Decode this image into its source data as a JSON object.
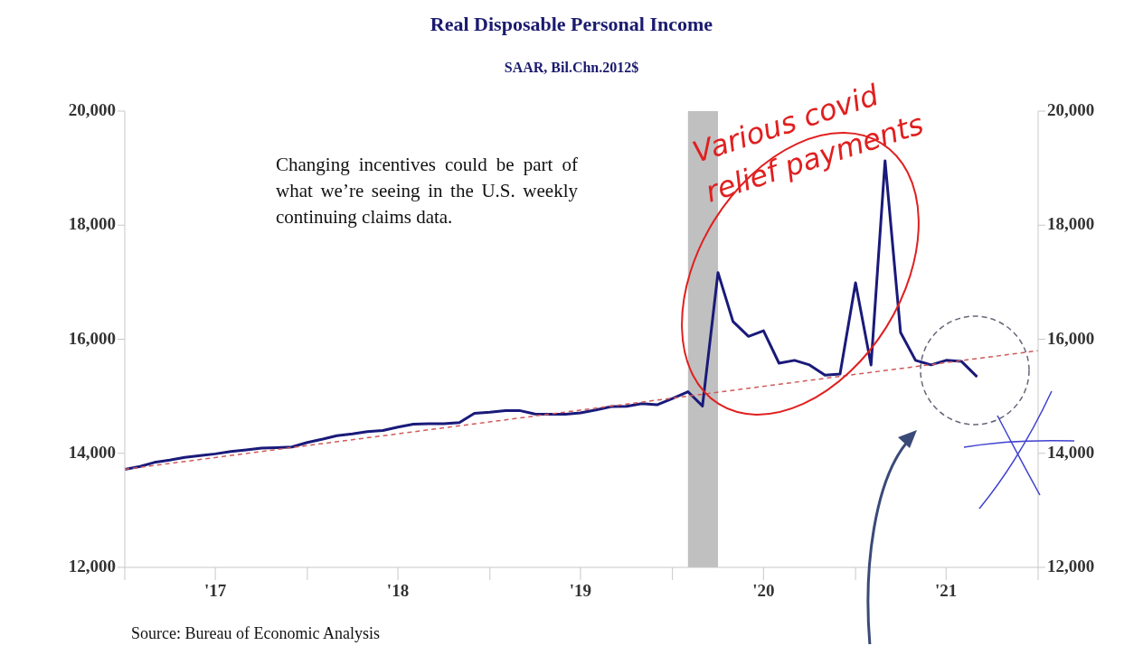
{
  "chart_data": {
    "type": "line",
    "title": "Real Disposable Personal Income",
    "subtitle": "SAAR, Bil.Chn.2012$",
    "annotations": [
      "Changing incentives could be part of what we’re seeing in the U.S. weekly continuing claims data.",
      "Various covid relief payments",
      "Source:  Bureau of Economic Analysis"
    ],
    "xlim": [
      "2017-01",
      "2022-01"
    ],
    "xticks": [
      {
        "value": "2017-01",
        "label": null
      },
      {
        "value": "2017-07",
        "label": "'17"
      },
      {
        "value": "2018-01",
        "label": null
      },
      {
        "value": "2018-07",
        "label": "'18"
      },
      {
        "value": "2019-01",
        "label": null
      },
      {
        "value": "2019-07",
        "label": "'19"
      },
      {
        "value": "2020-01",
        "label": null
      },
      {
        "value": "2020-07",
        "label": "'20"
      },
      {
        "value": "2021-01",
        "label": null
      },
      {
        "value": "2021-07",
        "label": "'21"
      },
      {
        "value": "2022-01",
        "label": null
      }
    ],
    "ylim": [
      12000,
      20000
    ],
    "yticks": [
      {
        "value": 12000,
        "label": "12,000"
      },
      {
        "value": 14000,
        "label": "14,000"
      },
      {
        "value": 16000,
        "label": "16,000"
      },
      {
        "value": 18000,
        "label": "18,000"
      },
      {
        "value": 20000,
        "label": "20,000"
      }
    ],
    "y2lim": [
      12000,
      20000
    ],
    "y2ticks": [
      {
        "value": 12000,
        "label": "12,000"
      },
      {
        "value": 14000,
        "label": "14,000"
      },
      {
        "value": 16000,
        "label": "16,000"
      },
      {
        "value": 18000,
        "label": "18,000"
      },
      {
        "value": 20000,
        "label": "20,000"
      }
    ],
    "marker": "none",
    "bands": [
      {
        "axis": "x",
        "from": "2020-02",
        "to": "2020-04",
        "color": "#c0c0c0"
      }
    ],
    "series": [
      {
        "color": "#1a1a7a",
        "line_style": "solid",
        "x": [
          "2017-01",
          "2017-02",
          "2017-03",
          "2017-04",
          "2017-05",
          "2017-06",
          "2017-07",
          "2017-08",
          "2017-09",
          "2017-10",
          "2017-11",
          "2017-12",
          "2018-01",
          "2018-02",
          "2018-03",
          "2018-04",
          "2018-05",
          "2018-06",
          "2018-07",
          "2018-08",
          "2018-09",
          "2018-10",
          "2018-11",
          "2018-12",
          "2019-01",
          "2019-02",
          "2019-03",
          "2019-04",
          "2019-05",
          "2019-06",
          "2019-07",
          "2019-08",
          "2019-09",
          "2019-10",
          "2019-11",
          "2019-12",
          "2020-01",
          "2020-02",
          "2020-03",
          "2020-04",
          "2020-05",
          "2020-06",
          "2020-07",
          "2020-08",
          "2020-09",
          "2020-10",
          "2020-11",
          "2020-12",
          "2021-01",
          "2021-02",
          "2021-03",
          "2021-04",
          "2021-05",
          "2021-06",
          "2021-07",
          "2021-08",
          "2021-09"
        ],
        "values": [
          13720,
          13770,
          13840,
          13880,
          13930,
          13960,
          13990,
          14030,
          14060,
          14090,
          14100,
          14110,
          14190,
          14250,
          14310,
          14340,
          14380,
          14400,
          14460,
          14510,
          14520,
          14520,
          14540,
          14700,
          14720,
          14750,
          14750,
          14690,
          14685,
          14685,
          14710,
          14760,
          14820,
          14825,
          14870,
          14850,
          14960,
          15080,
          14830,
          17170,
          16310,
          16050,
          16150,
          15580,
          15630,
          15550,
          15370,
          15390,
          16990,
          15550,
          19130,
          16120,
          15630,
          15550,
          15630,
          15610,
          15340
        ]
      },
      {
        "color": "#d05a5a",
        "line_style": "dashed",
        "x": [
          "2017-01",
          "2022-01"
        ],
        "values": [
          13720,
          15800
        ]
      }
    ]
  }
}
